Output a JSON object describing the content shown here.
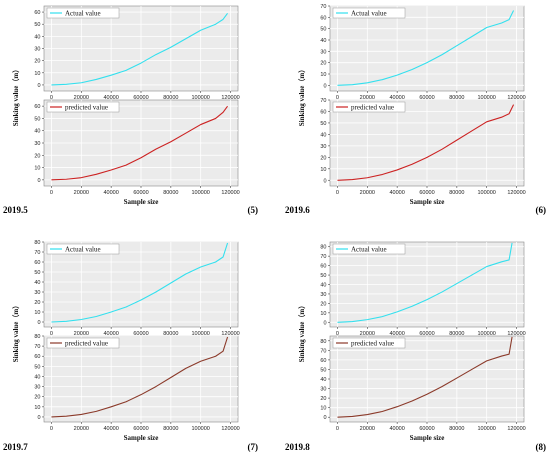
{
  "figure": {
    "panels": [
      {
        "date_label": "2019.5",
        "number_label": "(5)"
      },
      {
        "date_label": "2019.6",
        "number_label": "(6)"
      },
      {
        "date_label": "2019.7",
        "number_label": "(7)"
      },
      {
        "date_label": "2019.8",
        "number_label": "(8)"
      }
    ]
  },
  "chart_data": [
    {
      "type": "line",
      "panel": "2019.5",
      "subplot": "top",
      "ylabel": "Sinking value（m）",
      "xlabel": "",
      "xlim": [
        -5000,
        125000
      ],
      "ylim": [
        -5,
        65
      ],
      "xticks": [
        0,
        20000,
        40000,
        60000,
        80000,
        100000,
        120000
      ],
      "yticks": [
        0,
        10,
        20,
        30,
        40,
        50,
        60
      ],
      "grid": true,
      "legend": "top-left",
      "color": "#33e0ee",
      "series": [
        {
          "name": "Actual value",
          "x": [
            0,
            10000,
            20000,
            30000,
            40000,
            50000,
            60000,
            70000,
            80000,
            90000,
            100000,
            110000,
            115000,
            118000
          ],
          "y": [
            0,
            0.5,
            1.8,
            4.5,
            8,
            12,
            18,
            25,
            31,
            38,
            45,
            50,
            54,
            59
          ]
        }
      ]
    },
    {
      "type": "line",
      "panel": "2019.5",
      "subplot": "bottom",
      "ylabel": "",
      "xlabel": "Sample size",
      "xlim": [
        -5000,
        125000
      ],
      "ylim": [
        -5,
        65
      ],
      "xticks": [
        0,
        20000,
        40000,
        60000,
        80000,
        100000,
        120000
      ],
      "yticks": [
        0,
        10,
        20,
        30,
        40,
        50,
        60
      ],
      "grid": true,
      "legend": "top-left",
      "color": "#cc2222",
      "series": [
        {
          "name": "predicted value",
          "x": [
            0,
            10000,
            20000,
            30000,
            40000,
            50000,
            60000,
            70000,
            80000,
            90000,
            100000,
            110000,
            115000,
            118000
          ],
          "y": [
            0,
            0.5,
            1.8,
            4.5,
            8,
            12,
            18,
            25,
            31,
            38,
            45,
            50,
            55,
            60
          ]
        }
      ]
    },
    {
      "type": "line",
      "panel": "2019.6",
      "subplot": "top",
      "ylabel": "Sinking value（m）",
      "xlabel": "",
      "xlim": [
        -5000,
        125000
      ],
      "ylim": [
        -5,
        70
      ],
      "xticks": [
        0,
        20000,
        40000,
        60000,
        80000,
        100000,
        120000
      ],
      "yticks": [
        0,
        10,
        20,
        30,
        40,
        50,
        60,
        70
      ],
      "grid": true,
      "legend": "top-left",
      "color": "#33e0ee",
      "series": [
        {
          "name": "Actual value",
          "x": [
            0,
            10000,
            20000,
            30000,
            40000,
            50000,
            60000,
            70000,
            80000,
            90000,
            100000,
            110000,
            115000,
            118000
          ],
          "y": [
            0,
            0.6,
            2.2,
            5,
            9,
            14,
            20,
            27,
            35,
            43,
            51,
            55,
            58,
            66
          ]
        }
      ]
    },
    {
      "type": "line",
      "panel": "2019.6",
      "subplot": "bottom",
      "ylabel": "",
      "xlabel": "Sample size",
      "xlim": [
        -5000,
        125000
      ],
      "ylim": [
        -5,
        70
      ],
      "xticks": [
        0,
        20000,
        40000,
        60000,
        80000,
        100000,
        120000
      ],
      "yticks": [
        0,
        10,
        20,
        30,
        40,
        50,
        60,
        70
      ],
      "grid": true,
      "legend": "top-left",
      "color": "#cc2222",
      "series": [
        {
          "name": "predicted value",
          "x": [
            0,
            10000,
            20000,
            30000,
            40000,
            50000,
            60000,
            70000,
            80000,
            90000,
            100000,
            110000,
            115000,
            118000
          ],
          "y": [
            0,
            0.6,
            2.2,
            5,
            9,
            14,
            20,
            27,
            35,
            43,
            51,
            55,
            58,
            66
          ]
        }
      ]
    },
    {
      "type": "line",
      "panel": "2019.7",
      "subplot": "top",
      "ylabel": "Sinking value（m）",
      "xlabel": "",
      "xlim": [
        -5000,
        125000
      ],
      "ylim": [
        -5,
        80
      ],
      "xticks": [
        0,
        20000,
        40000,
        60000,
        80000,
        100000,
        120000
      ],
      "yticks": [
        0,
        10,
        20,
        30,
        40,
        50,
        60,
        70,
        80
      ],
      "grid": true,
      "legend": "top-left",
      "color": "#33e0ee",
      "series": [
        {
          "name": "Actual value",
          "x": [
            0,
            10000,
            20000,
            30000,
            40000,
            50000,
            60000,
            70000,
            80000,
            90000,
            100000,
            110000,
            115000,
            118000
          ],
          "y": [
            0,
            0.7,
            2.5,
            5.5,
            10,
            15,
            22,
            30,
            39,
            48,
            55,
            60,
            65,
            79
          ]
        }
      ]
    },
    {
      "type": "line",
      "panel": "2019.7",
      "subplot": "bottom",
      "ylabel": "",
      "xlabel": "Sample size",
      "xlim": [
        -5000,
        125000
      ],
      "ylim": [
        -5,
        80
      ],
      "xticks": [
        0,
        20000,
        40000,
        60000,
        80000,
        100000,
        120000
      ],
      "yticks": [
        0,
        10,
        20,
        30,
        40,
        50,
        60,
        70,
        80
      ],
      "grid": true,
      "legend": "top-left",
      "color": "#8b3a2a",
      "series": [
        {
          "name": "predicted value",
          "x": [
            0,
            10000,
            20000,
            30000,
            40000,
            50000,
            60000,
            70000,
            80000,
            90000,
            100000,
            110000,
            115000,
            118000
          ],
          "y": [
            0,
            0.7,
            2.5,
            5.5,
            10,
            15,
            22,
            30,
            39,
            48,
            55,
            60,
            65,
            79
          ]
        }
      ]
    },
    {
      "type": "line",
      "panel": "2019.8",
      "subplot": "top",
      "ylabel": "Sinking value（m）",
      "xlabel": "",
      "xlim": [
        -5000,
        125000
      ],
      "ylim": [
        -5,
        85
      ],
      "xticks": [
        0,
        20000,
        40000,
        60000,
        80000,
        100000,
        120000
      ],
      "yticks": [
        0,
        10,
        20,
        30,
        40,
        50,
        60,
        70,
        80
      ],
      "grid": true,
      "legend": "top-left",
      "color": "#33e0ee",
      "series": [
        {
          "name": "Actual value",
          "x": [
            0,
            10000,
            20000,
            30000,
            40000,
            50000,
            60000,
            70000,
            80000,
            90000,
            100000,
            110000,
            115000,
            117000
          ],
          "y": [
            0,
            0.8,
            2.8,
            6,
            11,
            17,
            24,
            32,
            41,
            50,
            59,
            64,
            66,
            84
          ]
        }
      ]
    },
    {
      "type": "line",
      "panel": "2019.8",
      "subplot": "bottom",
      "ylabel": "",
      "xlabel": "Sample size",
      "xlim": [
        -5000,
        125000
      ],
      "ylim": [
        -5,
        85
      ],
      "xticks": [
        0,
        20000,
        40000,
        60000,
        80000,
        100000,
        120000
      ],
      "yticks": [
        0,
        10,
        20,
        30,
        40,
        50,
        60,
        70,
        80
      ],
      "grid": true,
      "legend": "top-left",
      "color": "#8b3a2a",
      "series": [
        {
          "name": "predicted value",
          "x": [
            0,
            10000,
            20000,
            30000,
            40000,
            50000,
            60000,
            70000,
            80000,
            90000,
            100000,
            110000,
            115000,
            117000
          ],
          "y": [
            0,
            0.8,
            2.8,
            6,
            11,
            17,
            24,
            32,
            41,
            50,
            59,
            64,
            66,
            84
          ]
        }
      ]
    }
  ]
}
